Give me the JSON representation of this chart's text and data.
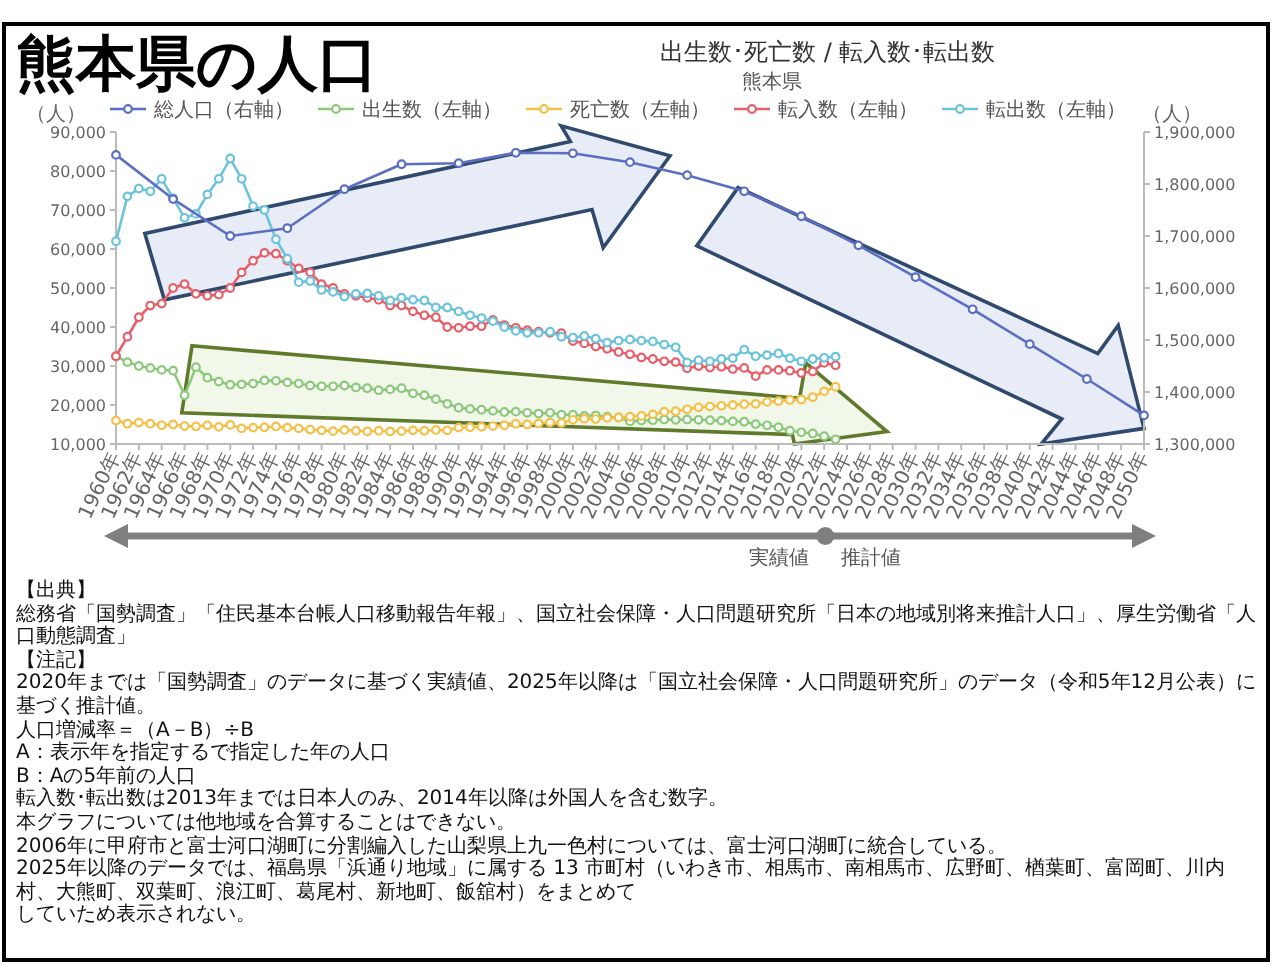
{
  "chart_data": {
    "type": "line",
    "title": "熊本県の人口",
    "subtitle": "出生数･死亡数 / 転入数･転出数",
    "annotations": [
      "熊本県",
      "実績値",
      "推計値",
      "【出典】",
      "総務省「国勢調査」「住民基本台帳人口移動報告年報」、国立社会保障・人口問題研究所「日本の地域別将来推計人口」、厚生労働省「人口動態調査」",
      "【注記】",
      "2020年までは「国勢調査」のデータに基づく実績値、2025年以降は「国立社会保障・人口問題研究所」のデータ（令和5年12月公表）に基づく推計値。",
      "人口増減率＝（A－B）÷B",
      "A：表示年を指定するで指定した年の人口",
      "B：Aの5年前の人口",
      "転入数･転出数は2013年までは日本人のみ、2014年以降は外国人を含む数字。",
      "本グラフについては他地域を合算することはできない。",
      "2006年に甲府市と富士河口湖町に分割編入した山梨県上九一色村については、富士河口湖町に統合している。",
      "2025年以降のデータでは、福島県「浜通り地域」に属する 13 市町村（いわき市、相馬市、南相馬市、広野町、楢葉町、富岡町、川内村、大熊町、双葉町、浪江町、葛尾村、新地町、飯舘村）をまとめて",
      "していため表示されない。"
    ],
    "ylabel": "（人）",
    "y2label": "（人）",
    "legend": "top",
    "marker": "circle",
    "xlim": [
      1960,
      2050
    ],
    "xticks": [
      {
        "value": 1960,
        "label": "1960年"
      },
      {
        "value": 1962,
        "label": "1962年"
      },
      {
        "value": 1964,
        "label": "1964年"
      },
      {
        "value": 1966,
        "label": "1966年"
      },
      {
        "value": 1968,
        "label": "1968年"
      },
      {
        "value": 1970,
        "label": "1970年"
      },
      {
        "value": 1972,
        "label": "1972年"
      },
      {
        "value": 1974,
        "label": "1974年"
      },
      {
        "value": 1976,
        "label": "1976年"
      },
      {
        "value": 1978,
        "label": "1978年"
      },
      {
        "value": 1980,
        "label": "1980年"
      },
      {
        "value": 1982,
        "label": "1982年"
      },
      {
        "value": 1984,
        "label": "1984年"
      },
      {
        "value": 1986,
        "label": "1986年"
      },
      {
        "value": 1988,
        "label": "1988年"
      },
      {
        "value": 1990,
        "label": "1990年"
      },
      {
        "value": 1992,
        "label": "1992年"
      },
      {
        "value": 1994,
        "label": "1994年"
      },
      {
        "value": 1996,
        "label": "1996年"
      },
      {
        "value": 1998,
        "label": "1998年"
      },
      {
        "value": 2000,
        "label": "2000年"
      },
      {
        "value": 2002,
        "label": "2002年"
      },
      {
        "value": 2004,
        "label": "2004年"
      },
      {
        "value": 2006,
        "label": "2006年"
      },
      {
        "value": 2008,
        "label": "2008年"
      },
      {
        "value": 2010,
        "label": "2010年"
      },
      {
        "value": 2012,
        "label": "2012年"
      },
      {
        "value": 2014,
        "label": "2014年"
      },
      {
        "value": 2016,
        "label": "2016年"
      },
      {
        "value": 2018,
        "label": "2018年"
      },
      {
        "value": 2020,
        "label": "2020年"
      },
      {
        "value": 2022,
        "label": "2022年"
      },
      {
        "value": 2024,
        "label": "2024年"
      },
      {
        "value": 2026,
        "label": "2026年"
      },
      {
        "value": 2028,
        "label": "2028年"
      },
      {
        "value": 2030,
        "label": "2030年"
      },
      {
        "value": 2032,
        "label": "2032年"
      },
      {
        "value": 2034,
        "label": "2034年"
      },
      {
        "value": 2036,
        "label": "2036年"
      },
      {
        "value": 2038,
        "label": "2038年"
      },
      {
        "value": 2040,
        "label": "2040年"
      },
      {
        "value": 2042,
        "label": "2042年"
      },
      {
        "value": 2044,
        "label": "2044年"
      },
      {
        "value": 2046,
        "label": "2046年"
      },
      {
        "value": 2048,
        "label": "2048年"
      },
      {
        "value": 2050,
        "label": "2050年"
      }
    ],
    "ylim": [
      10000,
      90000
    ],
    "yticks": [
      {
        "value": 10000,
        "label": "10,000"
      },
      {
        "value": 20000,
        "label": "20,000"
      },
      {
        "value": 30000,
        "label": "30,000"
      },
      {
        "value": 40000,
        "label": "40,000"
      },
      {
        "value": 50000,
        "label": "50,000"
      },
      {
        "value": 60000,
        "label": "60,000"
      },
      {
        "value": 70000,
        "label": "70,000"
      },
      {
        "value": 80000,
        "label": "80,000"
      },
      {
        "value": 90000,
        "label": "90,000"
      }
    ],
    "y2lim": [
      1300000,
      1900000
    ],
    "y2ticks": [
      {
        "value": 1300000,
        "label": "1,300,000"
      },
      {
        "value": 1400000,
        "label": "1,400,000"
      },
      {
        "value": 1500000,
        "label": "1,500,000"
      },
      {
        "value": 1600000,
        "label": "1,600,000"
      },
      {
        "value": 1700000,
        "label": "1,700,000"
      },
      {
        "value": 1800000,
        "label": "1,800,000"
      },
      {
        "value": 1900000,
        "label": "1,900,000"
      }
    ],
    "x": [
      1960,
      1961,
      1962,
      1963,
      1964,
      1965,
      1966,
      1967,
      1968,
      1969,
      1970,
      1971,
      1972,
      1973,
      1974,
      1975,
      1976,
      1977,
      1978,
      1979,
      1980,
      1981,
      1982,
      1983,
      1984,
      1985,
      1986,
      1987,
      1988,
      1989,
      1990,
      1991,
      1992,
      1993,
      1994,
      1995,
      1996,
      1997,
      1998,
      1999,
      2000,
      2001,
      2002,
      2003,
      2004,
      2005,
      2006,
      2007,
      2008,
      2009,
      2010,
      2011,
      2012,
      2013,
      2014,
      2015,
      2016,
      2017,
      2018,
      2019,
      2020,
      2021,
      2022,
      2023
    ],
    "series": [
      {
        "name": "総人口（右軸）",
        "color": "#5b6ec2",
        "axis": "y2",
        "x": [
          1960,
          1965,
          1970,
          1975,
          1980,
          1985,
          1990,
          1995,
          2000,
          2005,
          2010,
          2015,
          2020,
          2025,
          2030,
          2035,
          2040,
          2045,
          2050
        ],
        "values": [
          1856000,
          1771000,
          1700000,
          1715000,
          1790000,
          1838000,
          1840000,
          1860000,
          1859000,
          1842000,
          1817000,
          1786000,
          1738000,
          1682000,
          1621000,
          1559000,
          1492000,
          1425000,
          1355000
        ]
      },
      {
        "name": "出生数（左軸）",
        "color": "#8cc97a",
        "values": [
          32500,
          31000,
          30000,
          29500,
          29000,
          28800,
          22500,
          29700,
          27000,
          26000,
          25200,
          25300,
          25500,
          26300,
          26200,
          25800,
          25500,
          25000,
          24800,
          24800,
          25000,
          24500,
          24300,
          23800,
          24000,
          24300,
          23000,
          22500,
          21500,
          20300,
          19300,
          19000,
          18800,
          18500,
          18200,
          18300,
          18000,
          17800,
          18000,
          17500,
          17500,
          17200,
          17300,
          17000,
          16800,
          15800,
          16000,
          16100,
          16300,
          16200,
          16300,
          16200,
          16100,
          16000,
          15800,
          15700,
          15100,
          14800,
          14300,
          13400,
          13000,
          12700,
          12000,
          11200
        ]
      },
      {
        "name": "死亡数（左軸）",
        "color": "#f4c04a",
        "values": [
          16000,
          15200,
          15500,
          15200,
          14800,
          15000,
          14600,
          14500,
          14800,
          14400,
          14900,
          14000,
          14200,
          14300,
          14500,
          14200,
          14000,
          13700,
          13500,
          13300,
          13600,
          13400,
          13200,
          13400,
          13200,
          13300,
          13500,
          13400,
          13600,
          13500,
          14200,
          14300,
          14400,
          14600,
          14800,
          15200,
          15000,
          15300,
          15500,
          15400,
          16200,
          16500,
          16400,
          16700,
          16800,
          17000,
          17200,
          17600,
          18300,
          18400,
          18900,
          19400,
          19600,
          19800,
          20000,
          20200,
          20300,
          20800,
          21000,
          21300,
          21400,
          22000,
          23500,
          24700
        ]
      },
      {
        "name": "転入数（左軸）",
        "color": "#e5606a",
        "values": [
          32500,
          37500,
          42500,
          45500,
          46000,
          50000,
          51000,
          48500,
          48000,
          48300,
          50000,
          54000,
          57000,
          59000,
          58800,
          57000,
          55000,
          54000,
          51000,
          50000,
          48500,
          48000,
          47500,
          47000,
          45500,
          45500,
          44000,
          43000,
          42500,
          40000,
          39800,
          40200,
          40200,
          41800,
          40500,
          39800,
          39200,
          38800,
          38500,
          38400,
          36400,
          35800,
          35000,
          34400,
          33600,
          33000,
          32200,
          31800,
          31200,
          31000,
          29400,
          30000,
          29600,
          29800,
          29200,
          29500,
          27400,
          29000,
          29000,
          28800,
          28200,
          28600,
          30800,
          30200
        ]
      },
      {
        "name": "転出数（左軸）",
        "color": "#6cc3dc",
        "values": [
          62000,
          73500,
          75500,
          74800,
          78000,
          73000,
          68000,
          69000,
          74000,
          78000,
          83200,
          78000,
          71000,
          70000,
          62500,
          57500,
          51500,
          51800,
          49500,
          49000,
          47800,
          48500,
          48600,
          48000,
          46800,
          47500,
          47000,
          46800,
          45000,
          45000,
          44000,
          43000,
          42300,
          41500,
          40000,
          39000,
          38500,
          38500,
          38800,
          37500,
          37300,
          37700,
          37000,
          36000,
          36500,
          36800,
          36500,
          36300,
          35500,
          34800,
          30900,
          31500,
          31200,
          31800,
          32000,
          34200,
          32500,
          32800,
          33200,
          32000,
          31200,
          31800,
          32100,
          32400
        ]
      }
    ]
  }
}
